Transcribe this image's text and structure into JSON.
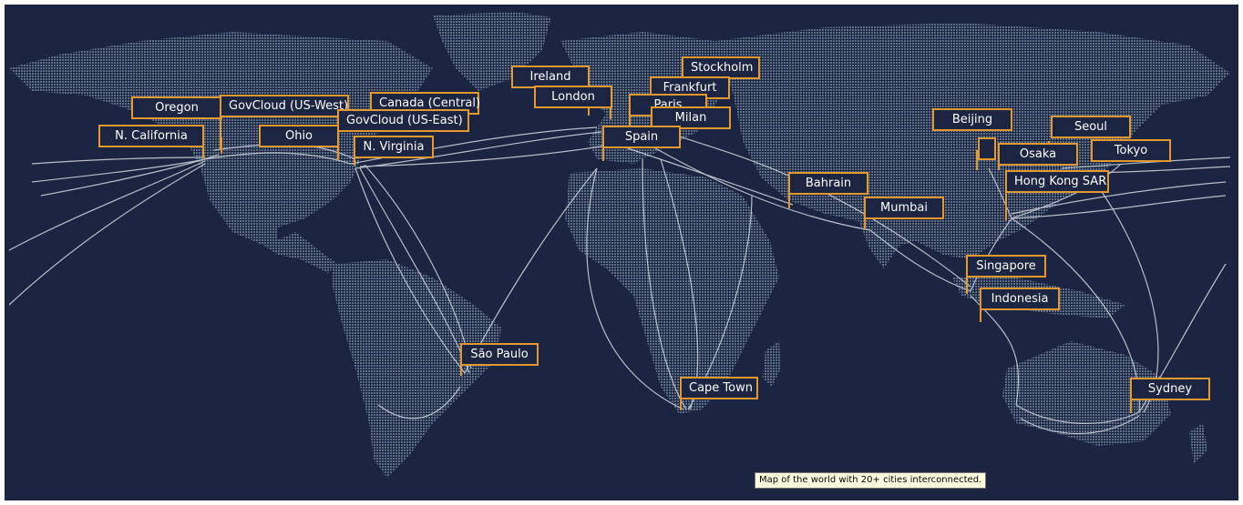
{
  "map": {
    "background": "#1b2440",
    "land_color": "#5a6b84",
    "cable_color": "#c9ced8",
    "label_border": "#e3992d",
    "label_text_color": "#ffffff"
  },
  "regions": [
    {
      "id": "oregon",
      "name": "Oregon"
    },
    {
      "id": "govcloud-us-west",
      "name": "GovCloud (US-West)"
    },
    {
      "id": "canada-central",
      "name": "Canada (Central)"
    },
    {
      "id": "govcloud-us-east",
      "name": "GovCloud (US-East)"
    },
    {
      "id": "n-california",
      "name": "N. California"
    },
    {
      "id": "ohio",
      "name": "Ohio"
    },
    {
      "id": "n-virginia",
      "name": "N. Virginia"
    },
    {
      "id": "ireland",
      "name": "Ireland"
    },
    {
      "id": "london",
      "name": "London"
    },
    {
      "id": "stockholm",
      "name": "Stockholm"
    },
    {
      "id": "frankfurt",
      "name": "Frankfurt"
    },
    {
      "id": "paris",
      "name": "Paris"
    },
    {
      "id": "milan",
      "name": "Milan"
    },
    {
      "id": "spain",
      "name": "Spain"
    },
    {
      "id": "bahrain",
      "name": "Bahrain"
    },
    {
      "id": "mumbai",
      "name": "Mumbai"
    },
    {
      "id": "beijing",
      "name": "Beijing"
    },
    {
      "id": "seoul",
      "name": "Seoul"
    },
    {
      "id": "osaka",
      "name": "Osaka"
    },
    {
      "id": "tokyo",
      "name": "Tokyo"
    },
    {
      "id": "hong-kong-sar",
      "name": "Hong Kong SAR"
    },
    {
      "id": "singapore",
      "name": "Singapore"
    },
    {
      "id": "indonesia",
      "name": "Indonesia"
    },
    {
      "id": "sao-paulo",
      "name": "São Paulo"
    },
    {
      "id": "cape-town",
      "name": "Cape Town"
    },
    {
      "id": "sydney",
      "name": "Sydney"
    }
  ],
  "tooltip": {
    "text": "Map of the world with 20+ cities interconnected."
  }
}
